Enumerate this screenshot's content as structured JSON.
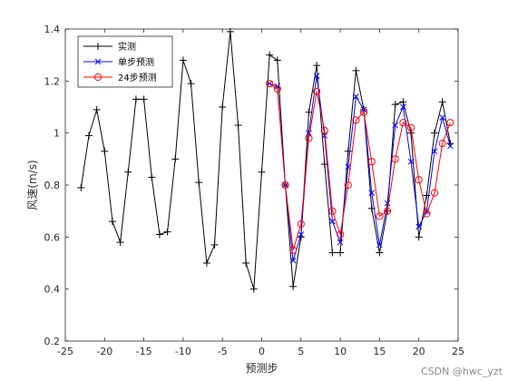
{
  "chart_data": {
    "type": "line",
    "xlabel": "预测步",
    "ylabel": "风速(m/s)",
    "xlim": [
      -25,
      25
    ],
    "ylim": [
      0.2,
      1.4
    ],
    "xticks": [
      -25,
      -20,
      -15,
      -10,
      -5,
      0,
      5,
      10,
      15,
      20,
      25
    ],
    "yticks": [
      0.2,
      0.4,
      0.6,
      0.8,
      1,
      1.2,
      1.4
    ],
    "grid": false,
    "legend_position": "top-left",
    "series": [
      {
        "name": "实测",
        "color": "#000000",
        "marker": "plus",
        "x": [
          -23,
          -22,
          -21,
          -20,
          -19,
          -18,
          -17,
          -16,
          -15,
          -14,
          -13,
          -12,
          -11,
          -10,
          -9,
          -8,
          -7,
          -6,
          -5,
          -4,
          -3,
          -2,
          -1,
          0,
          1,
          2,
          3,
          4,
          5,
          6,
          7,
          8,
          9,
          10,
          11,
          12,
          13,
          14,
          15,
          16,
          17,
          18,
          19,
          20,
          21,
          22,
          23,
          24
        ],
        "y": [
          0.79,
          0.99,
          1.09,
          0.93,
          0.66,
          0.58,
          0.85,
          1.13,
          1.13,
          0.83,
          0.61,
          0.62,
          0.9,
          1.28,
          1.19,
          0.81,
          0.5,
          0.57,
          1.1,
          1.39,
          1.03,
          0.5,
          0.4,
          0.85,
          1.3,
          1.28,
          0.8,
          0.41,
          0.6,
          1.08,
          1.26,
          0.88,
          0.54,
          0.54,
          0.93,
          1.24,
          1.09,
          0.71,
          0.54,
          0.7,
          1.11,
          1.12,
          1.0,
          0.6,
          0.76,
          1.0,
          1.12,
          0.96
        ]
      },
      {
        "name": "单步预测",
        "color": "#0000ff",
        "marker": "x",
        "x": [
          1,
          2,
          3,
          4,
          5,
          6,
          7,
          8,
          9,
          10,
          11,
          12,
          13,
          14,
          15,
          16,
          17,
          18,
          19,
          20,
          21,
          22,
          23,
          24
        ],
        "y": [
          1.19,
          1.18,
          0.8,
          0.51,
          0.61,
          1.0,
          1.22,
          0.99,
          0.66,
          0.58,
          0.87,
          1.14,
          1.09,
          0.77,
          0.57,
          0.73,
          1.03,
          1.1,
          0.89,
          0.64,
          0.7,
          0.93,
          1.06,
          0.95
        ]
      },
      {
        "name": "24步预测",
        "color": "#ff0000",
        "marker": "circle",
        "x": [
          1,
          2,
          3,
          4,
          5,
          6,
          7,
          8,
          9,
          10,
          11,
          12,
          13,
          14,
          15,
          16,
          17,
          18,
          19,
          20,
          21,
          22,
          23,
          24
        ],
        "y": [
          1.19,
          1.17,
          0.8,
          0.55,
          0.65,
          0.98,
          1.16,
          1.01,
          0.7,
          0.61,
          0.8,
          1.05,
          1.08,
          0.89,
          0.68,
          0.7,
          0.9,
          1.04,
          1.02,
          0.82,
          0.69,
          0.77,
          0.96,
          1.04
        ]
      }
    ]
  },
  "watermark": "CSDN @hwc_yzt"
}
